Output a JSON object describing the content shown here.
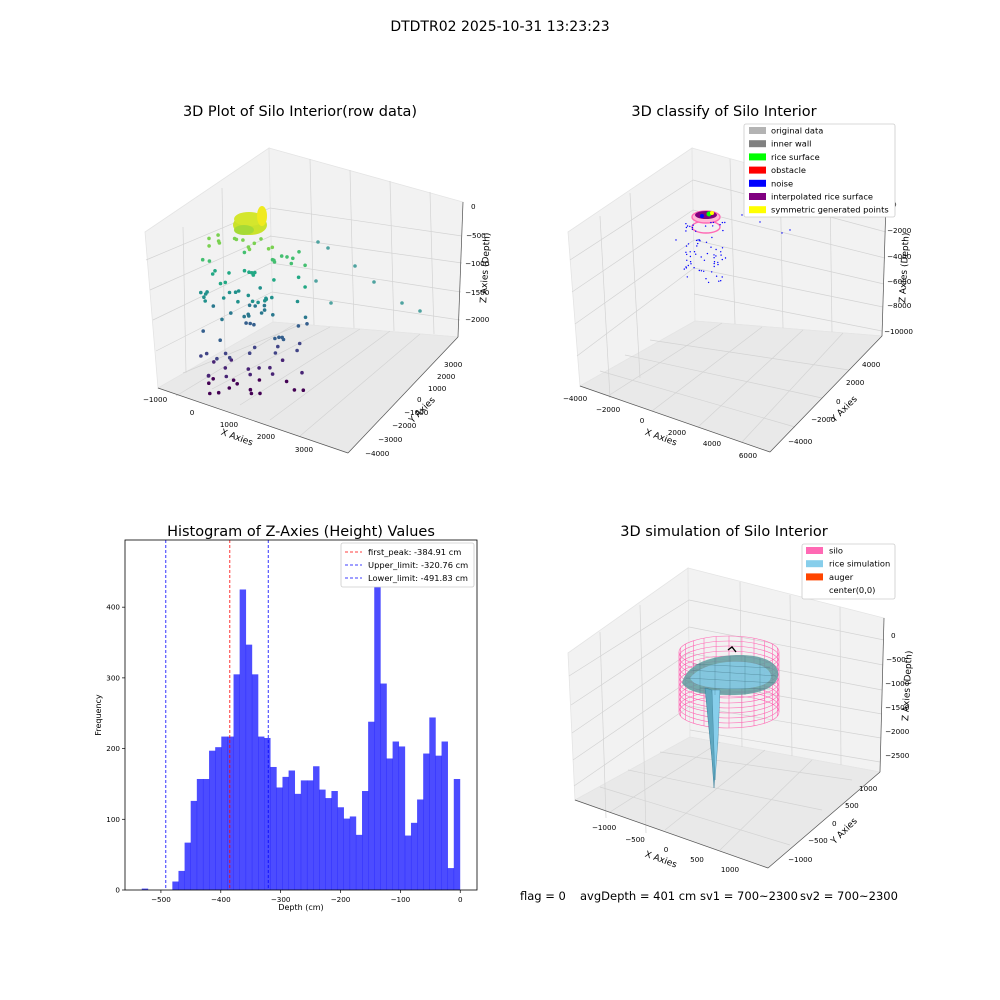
{
  "suptitle": "DTDTR02 2025-10-31 13:23:23",
  "panel1": {
    "title": "3D Plot of Silo Interior(row data)",
    "xlabel": "X Axies",
    "ylabel": "Y Axies",
    "zlabel": "Z Axies (Depth)",
    "xticks": [
      "−1000",
      "0",
      "1000",
      "2000",
      "3000"
    ],
    "yticks": [
      "−4000",
      "−3000",
      "−2000",
      "−1000",
      "0",
      "1000",
      "2000",
      "3000"
    ],
    "zticks": [
      "0",
      "−500",
      "−1000",
      "−1500",
      "−2000"
    ]
  },
  "panel2": {
    "title": "3D classify of Silo Interior",
    "xlabel": "X Axies",
    "ylabel": "Y Axies",
    "zlabel": "Z Axies (Depth)",
    "xticks": [
      "−4000",
      "−2000",
      "0",
      "2000",
      "4000",
      "6000"
    ],
    "yticks": [
      "−4000",
      "−2000",
      "0",
      "2000",
      "4000"
    ],
    "zticks": [
      "0",
      "−2000",
      "−4000",
      "−6000",
      "−8000",
      "−10000"
    ],
    "legend": [
      {
        "label": "original data",
        "color": "#b3b3b3"
      },
      {
        "label": "inner wall",
        "color": "#808080"
      },
      {
        "label": "rice surface",
        "color": "#00ff00"
      },
      {
        "label": "obstacle",
        "color": "#ff0000"
      },
      {
        "label": "noise",
        "color": "#0000ff"
      },
      {
        "label": "interpolated rice surface",
        "color": "#800080"
      },
      {
        "label": "symmetric generated points",
        "color": "#ffff00"
      }
    ]
  },
  "panel4": {
    "title": "3D simulation of Silo Interior",
    "xlabel": "X Axies",
    "ylabel": "Y Axies",
    "zlabel": "Z Axies (Depth)",
    "xticks": [
      "−1000",
      "−500",
      "0",
      "500",
      "1000"
    ],
    "yticks": [
      "−1000",
      "−500",
      "0",
      "500",
      "1000"
    ],
    "zticks": [
      "0",
      "−500",
      "−1000",
      "−1500",
      "−2000",
      "−2500"
    ],
    "legend": [
      {
        "label": "silo",
        "color": "#ff69b4"
      },
      {
        "label": "rice simulation",
        "color": "#87ceeb"
      },
      {
        "label": "auger",
        "color": "#ff4500"
      },
      {
        "label": "center(0,0)",
        "color": "#ffffff"
      }
    ]
  },
  "status": {
    "flag": "flag = 0",
    "avg": "avgDepth = 401 cm",
    "sv1": "sv1 = 700~2300",
    "sv2": "sv2 = 700~2300"
  },
  "chart_data": [
    {
      "type": "bar",
      "title": "Histogram of Z-Axies (Height) Values",
      "xlabel": "Depth (cm)",
      "ylabel": "Frequency",
      "xlim": [
        -560,
        28
      ],
      "ylim": [
        0,
        495
      ],
      "xticks": [
        -500,
        -400,
        -300,
        -200,
        -100,
        0
      ],
      "yticks": [
        0,
        100,
        200,
        300,
        400
      ],
      "bar_color": "#0000ff",
      "bin_edges_start": -532,
      "bin_width": 10.22,
      "values": [
        2,
        0,
        0,
        0,
        0,
        12,
        27,
        67,
        126,
        157,
        157,
        197,
        202,
        217,
        217,
        305,
        425,
        347,
        305,
        217,
        215,
        174,
        145,
        160,
        169,
        136,
        155,
        155,
        175,
        142,
        130,
        140,
        117,
        101,
        104,
        78,
        140,
        238,
        470,
        292,
        186,
        210,
        203,
        77,
        95,
        128,
        193,
        244,
        190,
        210,
        31,
        157
      ],
      "vlines": [
        {
          "label": "first_peak: -384.91 cm",
          "x": -384.91,
          "color": "#ff0000"
        },
        {
          "label": "Upper_limit: -320.76 cm",
          "x": -320.76,
          "color": "#0000ff"
        },
        {
          "label": "Lower_limit: -491.83 cm",
          "x": -491.83,
          "color": "#0000ff"
        }
      ]
    }
  ]
}
